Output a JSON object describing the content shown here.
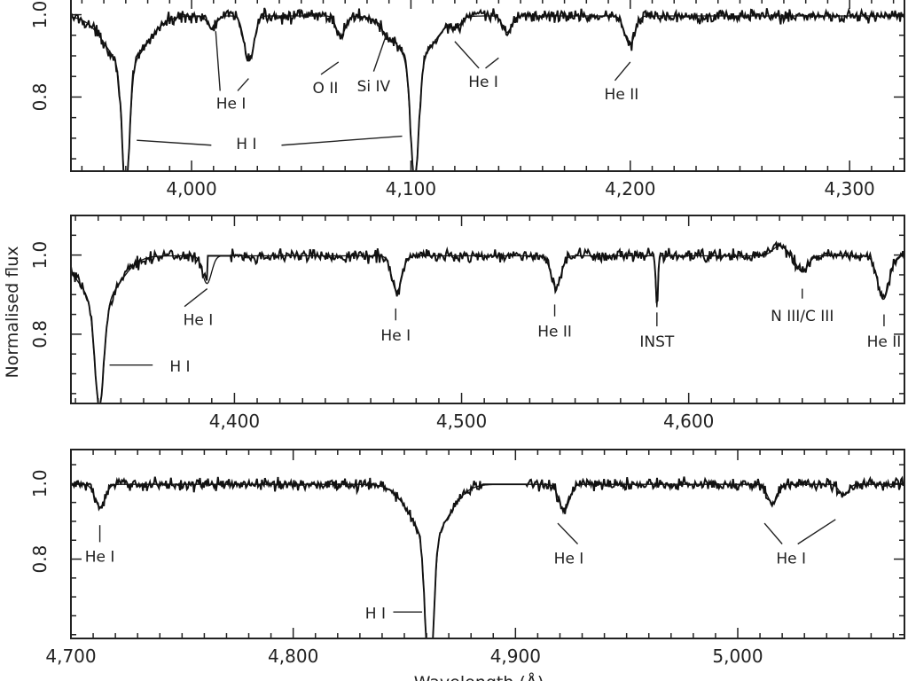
{
  "figure": {
    "ylabel": "Normalised flux",
    "xlabel": "Wavelength (Å)"
  },
  "chart_data": [
    {
      "type": "line",
      "panel": "top",
      "xlim": [
        3945,
        4325
      ],
      "ylim": [
        0.62,
        1.04
      ],
      "xticks": [
        4000,
        4100,
        4200,
        4300
      ],
      "xtick_labels": [
        "4,000",
        "4,100",
        "4,200",
        "4,300"
      ],
      "yticks": [
        0.8,
        1.0
      ],
      "ytick_labels": [
        "0.8",
        "1.0"
      ],
      "continuum": 0.997,
      "series": [
        {
          "role": "observed",
          "noise": 0.011,
          "gap": null
        },
        {
          "role": "model",
          "noise": 0,
          "gap": null
        }
      ],
      "absorption_lines": [
        {
          "center": 3970.0,
          "depth": 0.3,
          "sigma": 1.7,
          "wing": 9.0,
          "wing_depth": 0.12
        },
        {
          "center": 4009.3,
          "depth": 0.03,
          "sigma": 2.0
        },
        {
          "center": 4026.2,
          "depth": 0.11,
          "sigma": 2.2
        },
        {
          "center": 4068.0,
          "depth": 0.05,
          "sigma": 2.0
        },
        {
          "center": 4088.9,
          "depth": 0.02,
          "sigma": 1.6
        },
        {
          "center": 4101.7,
          "depth": 0.29,
          "sigma": 1.8,
          "wing": 8.5,
          "wing_depth": 0.11
        },
        {
          "center": 4120.8,
          "depth": 0.02,
          "sigma": 2.0
        },
        {
          "center": 4143.8,
          "depth": 0.04,
          "sigma": 2.0
        },
        {
          "center": 4199.8,
          "depth": 0.07,
          "sigma": 2.3
        }
      ],
      "annotations": [
        {
          "text": "He I",
          "x": 4018,
          "y": 0.783,
          "pointers": [
            [
              4011,
              0.96,
              4013,
              0.815
            ],
            [
              4021,
              0.815,
              4026,
              0.845
            ]
          ]
        },
        {
          "text": "O II",
          "x": 4061,
          "y": 0.82,
          "pointers": [
            [
              4059,
              0.855,
              4067,
              0.885
            ]
          ]
        },
        {
          "text": "Si IV",
          "x": 4083,
          "y": 0.825,
          "pointers": [
            [
              4083,
              0.862,
              4089,
              0.955
            ]
          ]
        },
        {
          "text": "He I",
          "x": 4133,
          "y": 0.835,
          "pointers": [
            [
              4120,
              0.935,
              4131,
              0.87
            ],
            [
              4134,
              0.87,
              4140,
              0.895
            ]
          ]
        },
        {
          "text": "He II",
          "x": 4196,
          "y": 0.805,
          "pointers": [
            [
              4193,
              0.84,
              4200,
              0.885
            ]
          ]
        },
        {
          "text": "H I",
          "x": 4025,
          "y": 0.685,
          "pointers": [
            [
              3975,
              0.695,
              4009,
              0.683
            ],
            [
              4041,
              0.683,
              4096,
              0.705
            ]
          ]
        }
      ]
    },
    {
      "type": "line",
      "panel": "middle",
      "xlim": [
        4328,
        4695
      ],
      "ylim": [
        0.625,
        1.1
      ],
      "xticks": [
        4400,
        4500,
        4600
      ],
      "xtick_labels": [
        "4,400",
        "4,500",
        "4,600"
      ],
      "yticks": [
        0.8,
        1.0
      ],
      "ytick_labels": [
        "0.8",
        "1.0"
      ],
      "continuum": 0.998,
      "series": [
        {
          "role": "observed",
          "noise": 0.011,
          "gap": [
            4388,
            4398
          ]
        },
        {
          "role": "model",
          "noise": 0,
          "gap": null
        }
      ],
      "absorption_lines": [
        {
          "center": 4340.5,
          "depth": 0.26,
          "sigma": 2.0,
          "wing": 8.5,
          "wing_depth": 0.12
        },
        {
          "center": 4387.9,
          "depth": 0.07,
          "sigma": 2.0
        },
        {
          "center": 4471.5,
          "depth": 0.09,
          "sigma": 2.2
        },
        {
          "center": 4541.6,
          "depth": 0.08,
          "sigma": 2.2
        },
        {
          "center": 4586.0,
          "depth": 0.13,
          "sigma": 0.5
        },
        {
          "center": 4640.0,
          "depth": -0.025,
          "sigma": 3.0
        },
        {
          "center": 4650.0,
          "depth": 0.04,
          "sigma": 2.5
        },
        {
          "center": 4685.7,
          "depth": 0.11,
          "sigma": 2.5
        }
      ],
      "annotations": [
        {
          "text": "He I",
          "x": 4384,
          "y": 0.835,
          "pointers": [
            [
              4378,
              0.87,
              4388,
              0.915
            ]
          ]
        },
        {
          "text": "He I",
          "x": 4471,
          "y": 0.795,
          "pointers": [
            [
              4471,
              0.835,
              4471,
              0.865
            ]
          ]
        },
        {
          "text": "He II",
          "x": 4541,
          "y": 0.805,
          "pointers": [
            [
              4541,
              0.845,
              4541,
              0.875
            ]
          ]
        },
        {
          "text": "INST",
          "x": 4586,
          "y": 0.78,
          "pointers": [
            [
              4586,
              0.82,
              4586,
              0.855
            ]
          ]
        },
        {
          "text": "N III/C III",
          "x": 4650,
          "y": 0.845,
          "pointers": [
            [
              4650,
              0.89,
              4650,
              0.915
            ]
          ]
        },
        {
          "text": "He II",
          "x": 4686,
          "y": 0.78,
          "pointers": [
            [
              4686,
              0.82,
              4686,
              0.85
            ]
          ]
        },
        {
          "text": "H I",
          "x": 4376,
          "y": 0.717,
          "pointers": [
            [
              4345,
              0.722,
              4364,
              0.722
            ]
          ]
        }
      ]
    },
    {
      "type": "line",
      "panel": "bottom",
      "xlim": [
        4700,
        5075
      ],
      "ylim": [
        0.59,
        1.09
      ],
      "xticks": [
        4700,
        4800,
        4900,
        5000
      ],
      "xtick_labels": [
        "4,700",
        "4,800",
        "4,900",
        "5,000"
      ],
      "yticks": [
        0.8,
        1.0
      ],
      "ytick_labels": [
        "0.8",
        "1.0"
      ],
      "continuum": 0.998,
      "series": [
        {
          "role": "observed",
          "noise": 0.011,
          "gap": [
            4885,
            4905
          ]
        },
        {
          "role": "model",
          "noise": 0,
          "gap": null
        }
      ],
      "absorption_lines": [
        {
          "center": 4713.1,
          "depth": 0.06,
          "sigma": 2.3
        },
        {
          "center": 4861.3,
          "depth": 0.39,
          "sigma": 1.8,
          "wing": 8.5,
          "wing_depth": 0.14
        },
        {
          "center": 4921.9,
          "depth": 0.07,
          "sigma": 2.3
        },
        {
          "center": 5015.7,
          "depth": 0.05,
          "sigma": 2.3
        },
        {
          "center": 5047.7,
          "depth": 0.03,
          "sigma": 2.0
        }
      ],
      "annotations": [
        {
          "text": "He I",
          "x": 4713,
          "y": 0.805,
          "pointers": [
            [
              4713,
              0.845,
              4713,
              0.89
            ]
          ]
        },
        {
          "text": "He I",
          "x": 4924,
          "y": 0.8,
          "pointers": [
            [
              4919,
              0.895,
              4928,
              0.84
            ]
          ]
        },
        {
          "text": "He I",
          "x": 5024,
          "y": 0.8,
          "pointers": [
            [
              5012,
              0.895,
              5020,
              0.84
            ],
            [
              5027,
              0.84,
              5044,
              0.905
            ]
          ]
        },
        {
          "text": "H I",
          "x": 4837,
          "y": 0.655,
          "pointers": [
            [
              4845,
              0.66,
              4858,
              0.66
            ]
          ]
        }
      ]
    }
  ]
}
